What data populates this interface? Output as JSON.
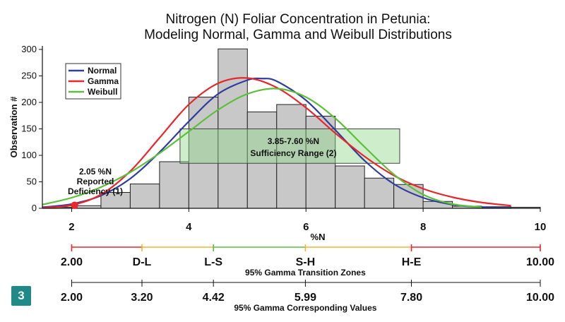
{
  "figure_number": "3",
  "chart_data": {
    "type": "bar",
    "title": "Nitrogen (N) Foliar Concentration in Petunia:",
    "subtitle": "Modeling Normal, Gamma and Weibull Distributions",
    "xlabel": "%N",
    "ylabel": "Observation #",
    "xlim": [
      1.5,
      10.0
    ],
    "ylim": [
      0,
      300
    ],
    "x_ticks": [
      2,
      4,
      6,
      8,
      10
    ],
    "y_ticks": [
      0,
      50,
      100,
      150,
      200,
      250,
      300
    ],
    "grid": false,
    "legend_position": "top-left",
    "bins": [
      {
        "x0": 1.5,
        "x1": 2.0,
        "count": 2
      },
      {
        "x0": 2.0,
        "x1": 2.5,
        "count": 5
      },
      {
        "x0": 2.5,
        "x1": 3.0,
        "count": 30
      },
      {
        "x0": 3.0,
        "x1": 3.5,
        "count": 46
      },
      {
        "x0": 3.5,
        "x1": 4.0,
        "count": 88
      },
      {
        "x0": 4.0,
        "x1": 4.5,
        "count": 210
      },
      {
        "x0": 4.5,
        "x1": 5.0,
        "count": 301
      },
      {
        "x0": 5.0,
        "x1": 5.5,
        "count": 182
      },
      {
        "x0": 5.5,
        "x1": 6.0,
        "count": 196
      },
      {
        "x0": 6.0,
        "x1": 6.5,
        "count": 174
      },
      {
        "x0": 6.5,
        "x1": 7.0,
        "count": 80
      },
      {
        "x0": 7.0,
        "x1": 7.5,
        "count": 57
      },
      {
        "x0": 7.5,
        "x1": 8.0,
        "count": 45
      },
      {
        "x0": 8.0,
        "x1": 8.5,
        "count": 13
      },
      {
        "x0": 8.5,
        "x1": 9.0,
        "count": 4
      },
      {
        "x0": 9.0,
        "x1": 9.5,
        "count": 3
      },
      {
        "x0": 9.5,
        "x1": 10.0,
        "count": 2
      }
    ],
    "series": [
      {
        "name": "Normal",
        "color": "#2f3d9c",
        "x": [
          1.5,
          2.0,
          2.5,
          3.0,
          3.5,
          4.0,
          4.5,
          5.0,
          5.25,
          5.5,
          6.0,
          6.5,
          7.0,
          7.5,
          8.0,
          8.5,
          9.0,
          9.5
        ],
        "y": [
          2,
          8,
          24,
          56,
          106,
          164,
          216,
          242,
          245,
          240,
          204,
          148,
          90,
          46,
          20,
          7,
          2,
          1
        ]
      },
      {
        "name": "Gamma",
        "color": "#e8262b",
        "x": [
          1.5,
          2.0,
          2.5,
          3.0,
          3.5,
          4.0,
          4.5,
          5.0,
          5.5,
          6.0,
          6.5,
          7.0,
          7.5,
          8.0,
          8.5,
          9.0,
          9.5
        ],
        "y": [
          1,
          6,
          26,
          70,
          133,
          196,
          236,
          246,
          228,
          190,
          142,
          98,
          62,
          37,
          21,
          11,
          5
        ]
      },
      {
        "name": "Weibull",
        "color": "#5cbf3a",
        "x": [
          1.5,
          2.0,
          2.5,
          3.0,
          3.5,
          4.0,
          4.5,
          5.0,
          5.5,
          6.0,
          6.5,
          7.0,
          7.5,
          8.0,
          8.5,
          9.0
        ],
        "y": [
          7,
          20,
          40,
          68,
          104,
          145,
          186,
          216,
          226,
          210,
          170,
          116,
          64,
          26,
          8,
          2
        ]
      }
    ],
    "reported_deficiency": {
      "x": 2.05,
      "y": 3,
      "color": "#e8262b",
      "label_lines": [
        "2.05 %N",
        "Reported",
        "Deficiency (1)"
      ]
    },
    "sufficiency_range": {
      "x0": 3.85,
      "x1": 7.6,
      "y0": 85,
      "y1": 150,
      "label_lines": [
        "3.85-7.60 %N",
        "Sufficiency Range (2)"
      ]
    }
  },
  "transition_zones": {
    "caption": "95% Gamma Transition Zones",
    "labels": [
      "2.00",
      "D-L",
      "L-S",
      "S-H",
      "H-E",
      "10.00"
    ],
    "positions": [
      2.0,
      3.2,
      4.42,
      5.99,
      7.8,
      10.0
    ],
    "segment_colors": [
      "#e8262b",
      "#f2b233",
      "#5cbf3a",
      "#f2b233",
      "#e8262b"
    ]
  },
  "corresponding_values": {
    "caption": "95% Gamma Corresponding Values",
    "labels": [
      "2.00",
      "3.20",
      "4.42",
      "5.99",
      "7.80",
      "10.00"
    ],
    "positions": [
      2.0,
      3.2,
      4.42,
      5.99,
      7.8,
      10.0
    ]
  }
}
